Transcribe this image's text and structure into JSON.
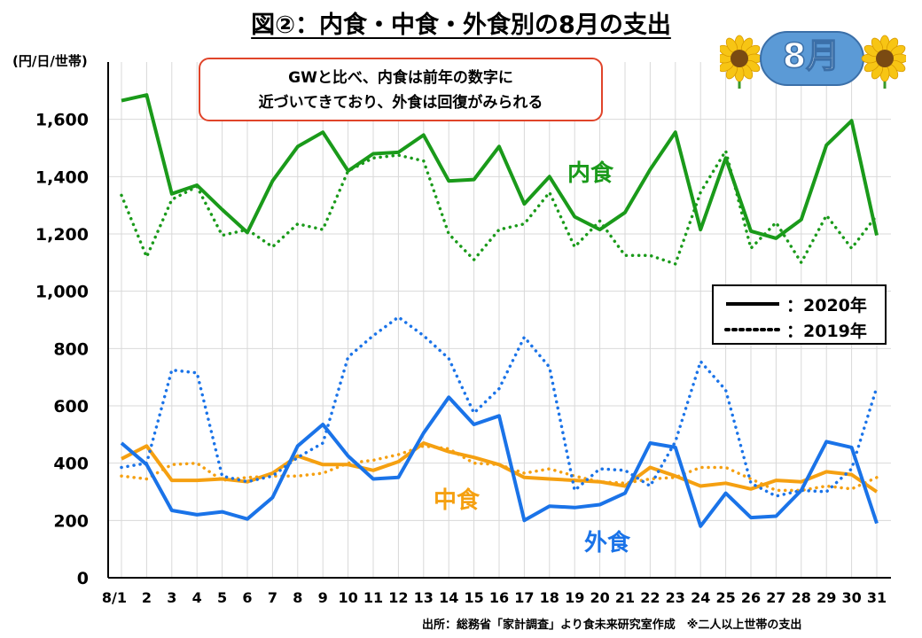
{
  "title": "図②：内食・中食・外食別の8月の支出",
  "callout": {
    "line1": "GWと比べ、内食は前年の数字に",
    "line2": "近づいてきており、外食は回復がみられる"
  },
  "badge": {
    "month": "8月",
    "icon": "sunflower-icon"
  },
  "legend": {
    "line2020": "：2020年",
    "line2019": "：2019年"
  },
  "series_labels": {
    "uchi": "内食",
    "naka": "中食",
    "soto": "外食"
  },
  "source": "出所：総務省「家計調査」より食未来研究室作成　※二人以上世帯の支出",
  "colors": {
    "uchi": "#1a9a1a",
    "naka": "#f5a011",
    "soto": "#1a73e8"
  },
  "chart_data": {
    "type": "line",
    "title": "図②：内食・中食・外食別の8月の支出",
    "ylabel": "(円/日/世帯)",
    "xlabel": "",
    "ylim": [
      0,
      1800
    ],
    "yticks": [
      0,
      200,
      400,
      600,
      800,
      1000,
      1200,
      1400,
      1600
    ],
    "ytick_labels": [
      "0",
      "200",
      "400",
      "600",
      "800",
      "1,000",
      "1,200",
      "1,400",
      "1,600"
    ],
    "x": [
      1,
      2,
      3,
      4,
      5,
      6,
      7,
      8,
      9,
      10,
      11,
      12,
      13,
      14,
      15,
      16,
      17,
      18,
      19,
      20,
      21,
      22,
      23,
      24,
      25,
      26,
      27,
      28,
      29,
      30,
      31
    ],
    "xtick_labels": [
      "8/1",
      "2",
      "3",
      "4",
      "5",
      "6",
      "7",
      "8",
      "9",
      "10",
      "11",
      "12",
      "13",
      "14",
      "15",
      "16",
      "17",
      "18",
      "19",
      "20",
      "21",
      "22",
      "23",
      "24",
      "25",
      "26",
      "27",
      "28",
      "29",
      "30",
      "31"
    ],
    "grid": true,
    "series": [
      {
        "name": "内食 2020",
        "key": "uchi",
        "style": "solid",
        "values": [
          1665,
          1685,
          1340,
          1370,
          1285,
          1205,
          1385,
          1505,
          1555,
          1420,
          1480,
          1485,
          1545,
          1385,
          1390,
          1505,
          1305,
          1400,
          1260,
          1215,
          1275,
          1425,
          1555,
          1215,
          1465,
          1210,
          1185,
          1250,
          1510,
          1595,
          1195
        ]
      },
      {
        "name": "内食 2019",
        "key": "uchi",
        "style": "dotted",
        "values": [
          1335,
          1120,
          1320,
          1365,
          1195,
          1215,
          1155,
          1235,
          1215,
          1420,
          1465,
          1475,
          1455,
          1200,
          1110,
          1215,
          1235,
          1345,
          1155,
          1245,
          1125,
          1125,
          1095,
          1345,
          1490,
          1150,
          1240,
          1100,
          1265,
          1150,
          1265
        ]
      },
      {
        "name": "中食 2020",
        "key": "naka",
        "style": "solid",
        "values": [
          415,
          460,
          340,
          340,
          345,
          335,
          365,
          425,
          395,
          395,
          375,
          405,
          470,
          440,
          420,
          395,
          350,
          345,
          340,
          335,
          320,
          385,
          355,
          320,
          330,
          310,
          340,
          335,
          370,
          360,
          300
        ]
      },
      {
        "name": "中食 2019",
        "key": "naka",
        "style": "dotted",
        "values": [
          355,
          345,
          395,
          400,
          340,
          350,
          355,
          355,
          365,
          400,
          410,
          430,
          460,
          450,
          400,
          395,
          365,
          380,
          355,
          335,
          330,
          345,
          350,
          385,
          385,
          345,
          305,
          305,
          320,
          310,
          350
        ]
      },
      {
        "name": "外食 2020",
        "key": "soto",
        "style": "solid",
        "values": [
          470,
          395,
          235,
          220,
          230,
          205,
          280,
          460,
          535,
          425,
          345,
          350,
          505,
          630,
          535,
          565,
          200,
          250,
          245,
          255,
          295,
          470,
          455,
          180,
          295,
          210,
          215,
          305,
          475,
          455,
          190
        ]
      },
      {
        "name": "外食 2019",
        "key": "soto",
        "style": "dotted",
        "values": [
          385,
          400,
          725,
          715,
          355,
          335,
          355,
          420,
          470,
          770,
          845,
          910,
          845,
          765,
          575,
          660,
          840,
          735,
          305,
          380,
          375,
          320,
          475,
          755,
          655,
          330,
          285,
          305,
          300,
          380,
          665
        ]
      }
    ]
  }
}
